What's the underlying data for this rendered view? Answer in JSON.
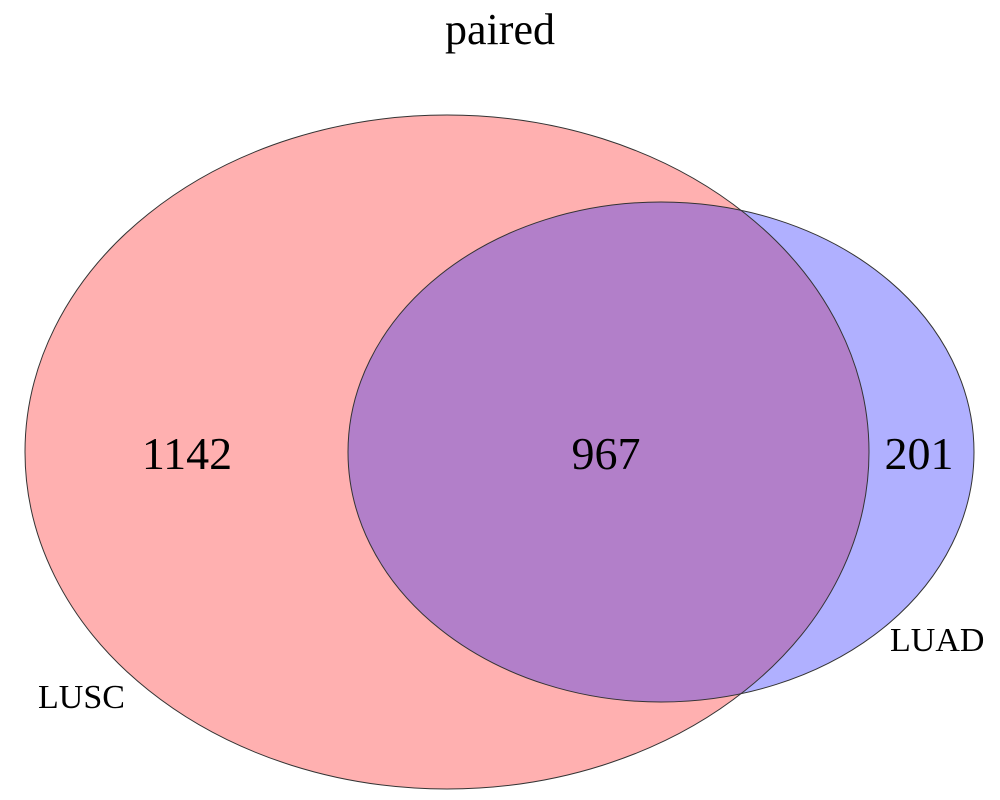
{
  "title": "paired",
  "sets": [
    {
      "name": "LUSC",
      "color": "#ffb0b0",
      "only_count": "1142"
    },
    {
      "name": "LUAD",
      "color": "#b0b0ff",
      "only_count": "201"
    }
  ],
  "intersection": {
    "count": "967",
    "color": "#b27fc9"
  },
  "outline_color": "#333333"
}
